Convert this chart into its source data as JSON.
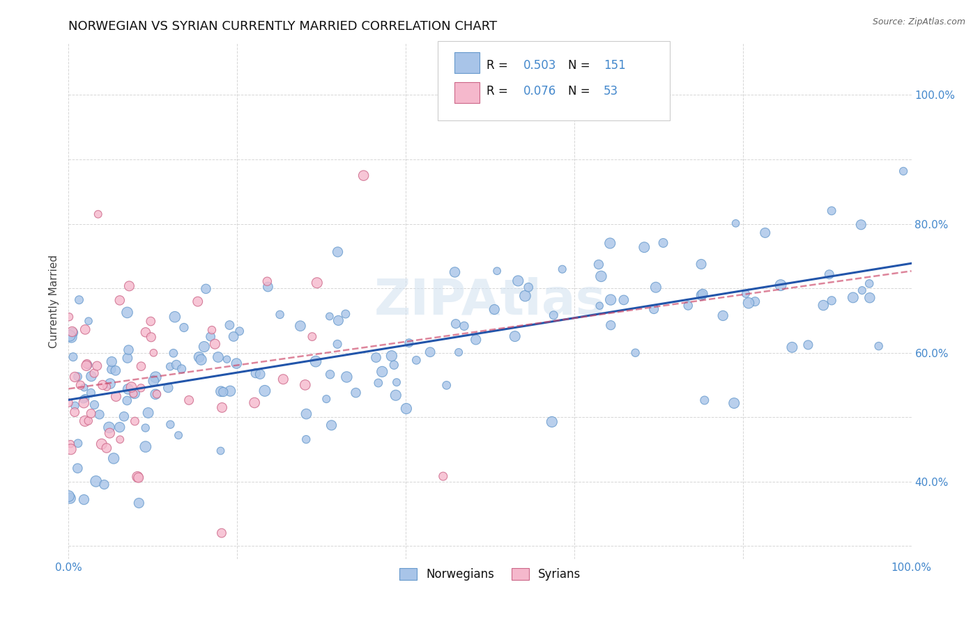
{
  "title": "NORWEGIAN VS SYRIAN CURRENTLY MARRIED CORRELATION CHART",
  "source": "Source: ZipAtlas.com",
  "ylabel": "Currently Married",
  "norwegian_R": 0.503,
  "norwegian_N": 151,
  "syrian_R": 0.076,
  "syrian_N": 53,
  "norwegian_color": "#a8c4e8",
  "norwegian_edge": "#6699cc",
  "syrian_color": "#f5b8cc",
  "syrian_edge": "#cc6688",
  "trend_norwegian": "#2255aa",
  "trend_syrian": "#cc4466",
  "background_color": "#ffffff",
  "grid_color": "#cccccc",
  "watermark": "ZIPAtlas",
  "xlim": [
    0.0,
    1.0
  ],
  "ylim": [
    0.28,
    1.08
  ],
  "tick_color": "#4488cc",
  "title_fontsize": 13,
  "axis_fontsize": 11,
  "tick_fontsize": 11
}
